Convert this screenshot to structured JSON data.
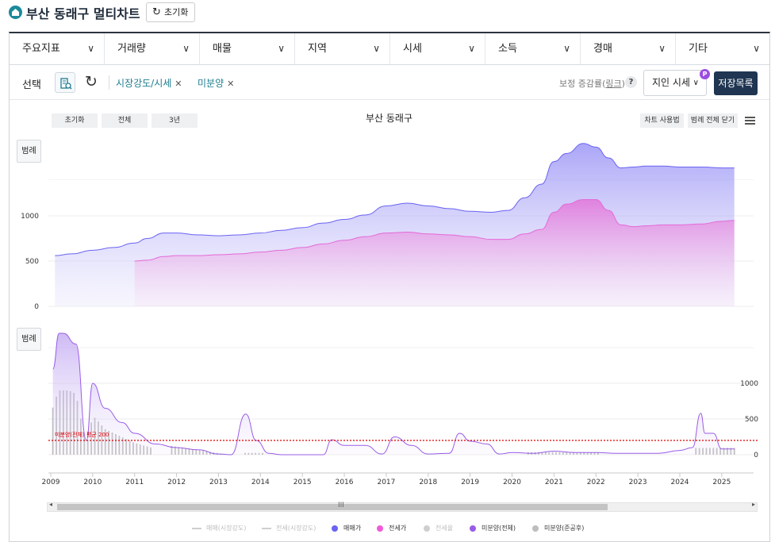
{
  "header": {
    "title": "부산 동래구 멀티차트",
    "reset_label": "초기화"
  },
  "menubar": {
    "items": [
      {
        "label": "주요지표"
      },
      {
        "label": "거래량"
      },
      {
        "label": "매물"
      },
      {
        "label": "지역"
      },
      {
        "label": "시세"
      },
      {
        "label": "소득"
      },
      {
        "label": "경매"
      },
      {
        "label": "기타"
      }
    ]
  },
  "selection": {
    "label": "선택",
    "tags": [
      {
        "label": "시장강도/시세"
      },
      {
        "label": "미분양"
      }
    ],
    "correction_prefix": "보정 증감률(",
    "correction_link": "링크",
    "correction_suffix": ")",
    "help": "?",
    "price_select": "지인 시세",
    "price_badge": "P",
    "save_label": "저장목록"
  },
  "chart_controls": {
    "range_buttons": [
      "초기화",
      "전체",
      "3년"
    ],
    "title": "부산 동래구",
    "usage_label": "차트 사용법",
    "close_legend_label": "범례 전체 닫기",
    "legend_btn": "범례"
  },
  "colors": {
    "sale": "#6b63f2",
    "jeonse": "#e36ad6",
    "unsold": "#9a5ce6",
    "unsold_bar": "#b9b9b9",
    "avg_line": "#e00000"
  },
  "chart_data": [
    {
      "type": "area",
      "title": "부산 동래구",
      "yticks": [
        0,
        500,
        1000
      ],
      "x": [
        2009.1,
        2009.5,
        2010,
        2010.5,
        2011,
        2011.3,
        2011.7,
        2012,
        2012.5,
        2013,
        2013.5,
        2014,
        2014.5,
        2015,
        2015.5,
        2016,
        2016.5,
        2017,
        2017.5,
        2018,
        2018.5,
        2019,
        2019.5,
        2019.9,
        2020.3,
        2020.7,
        2021,
        2021.3,
        2021.7,
        2022,
        2022.3,
        2022.6,
        2022.9,
        2023.2,
        2023.6,
        2024,
        2024.5,
        2025,
        2025.3
      ],
      "series": [
        {
          "name": "매매가",
          "values": [
            560,
            580,
            620,
            650,
            700,
            750,
            810,
            810,
            790,
            780,
            790,
            810,
            840,
            870,
            920,
            960,
            1010,
            1110,
            1140,
            1110,
            1080,
            1050,
            1040,
            1060,
            1200,
            1350,
            1600,
            1690,
            1800,
            1760,
            1640,
            1530,
            1540,
            1550,
            1550,
            1540,
            1540,
            1530,
            1530
          ]
        },
        {
          "name": "전세가",
          "values": [
            null,
            null,
            null,
            null,
            500,
            510,
            550,
            560,
            560,
            570,
            580,
            600,
            620,
            650,
            690,
            730,
            770,
            810,
            820,
            800,
            790,
            770,
            740,
            740,
            800,
            850,
            1040,
            1130,
            1180,
            1180,
            1060,
            900,
            880,
            890,
            900,
            900,
            910,
            940,
            950
          ]
        }
      ]
    },
    {
      "type": "line",
      "yticks": [
        0,
        500,
        1000
      ],
      "x": [
        2009.05,
        2009.2,
        2009.3,
        2009.6,
        2009.85,
        2010,
        2010.3,
        2010.7,
        2011,
        2011.5,
        2012,
        2012.5,
        2013,
        2013.3,
        2013.65,
        2013.9,
        2014.2,
        2014.5,
        2015,
        2015.5,
        2015.7,
        2016,
        2016.5,
        2016.9,
        2017.2,
        2017.6,
        2018,
        2018.5,
        2018.75,
        2019,
        2019.4,
        2019.7,
        2020,
        2020.5,
        2021,
        2021.5,
        2022,
        2022.5,
        2023,
        2023.5,
        2024,
        2024.3,
        2024.5,
        2024.6,
        2024.8,
        2025,
        2025.3
      ],
      "series": [
        {
          "name": "미분양(전체)",
          "values": [
            1200,
            1700,
            1700,
            1550,
            200,
            1000,
            650,
            450,
            300,
            150,
            100,
            70,
            10,
            0,
            570,
            200,
            20,
            0,
            0,
            0,
            210,
            130,
            130,
            10,
            250,
            130,
            10,
            20,
            300,
            190,
            150,
            10,
            30,
            20,
            50,
            30,
            30,
            20,
            20,
            20,
            60,
            100,
            580,
            300,
            300,
            80,
            80
          ]
        }
      ],
      "avg_label": "미분양(전체) 평균 200",
      "avg_value": 200,
      "xlabels": [
        "2009",
        "2010",
        "2011",
        "2012",
        "2013",
        "2014",
        "2015",
        "2016",
        "2017",
        "2018",
        "2019",
        "2020",
        "2021",
        "2022",
        "2023",
        "2024",
        "2025"
      ]
    }
  ],
  "legend": [
    {
      "label": "매매(시장강도)",
      "kind": "line",
      "color": "#cfcfcf",
      "muted": true
    },
    {
      "label": "전세(시장강도)",
      "kind": "line",
      "color": "#cfcfcf",
      "muted": true
    },
    {
      "label": "매매가",
      "kind": "dot",
      "color": "#6b63f2",
      "muted": false
    },
    {
      "label": "전세가",
      "kind": "dot",
      "color": "#f05bd8",
      "muted": false
    },
    {
      "label": "전세율",
      "kind": "dot",
      "color": "#cfcfcf",
      "muted": true
    },
    {
      "label": "미분양(전체)",
      "kind": "dot",
      "color": "#9a5ce6",
      "muted": false
    },
    {
      "label": "미분양(준공후)",
      "kind": "dot",
      "color": "#bdbdbd",
      "muted": false
    }
  ]
}
